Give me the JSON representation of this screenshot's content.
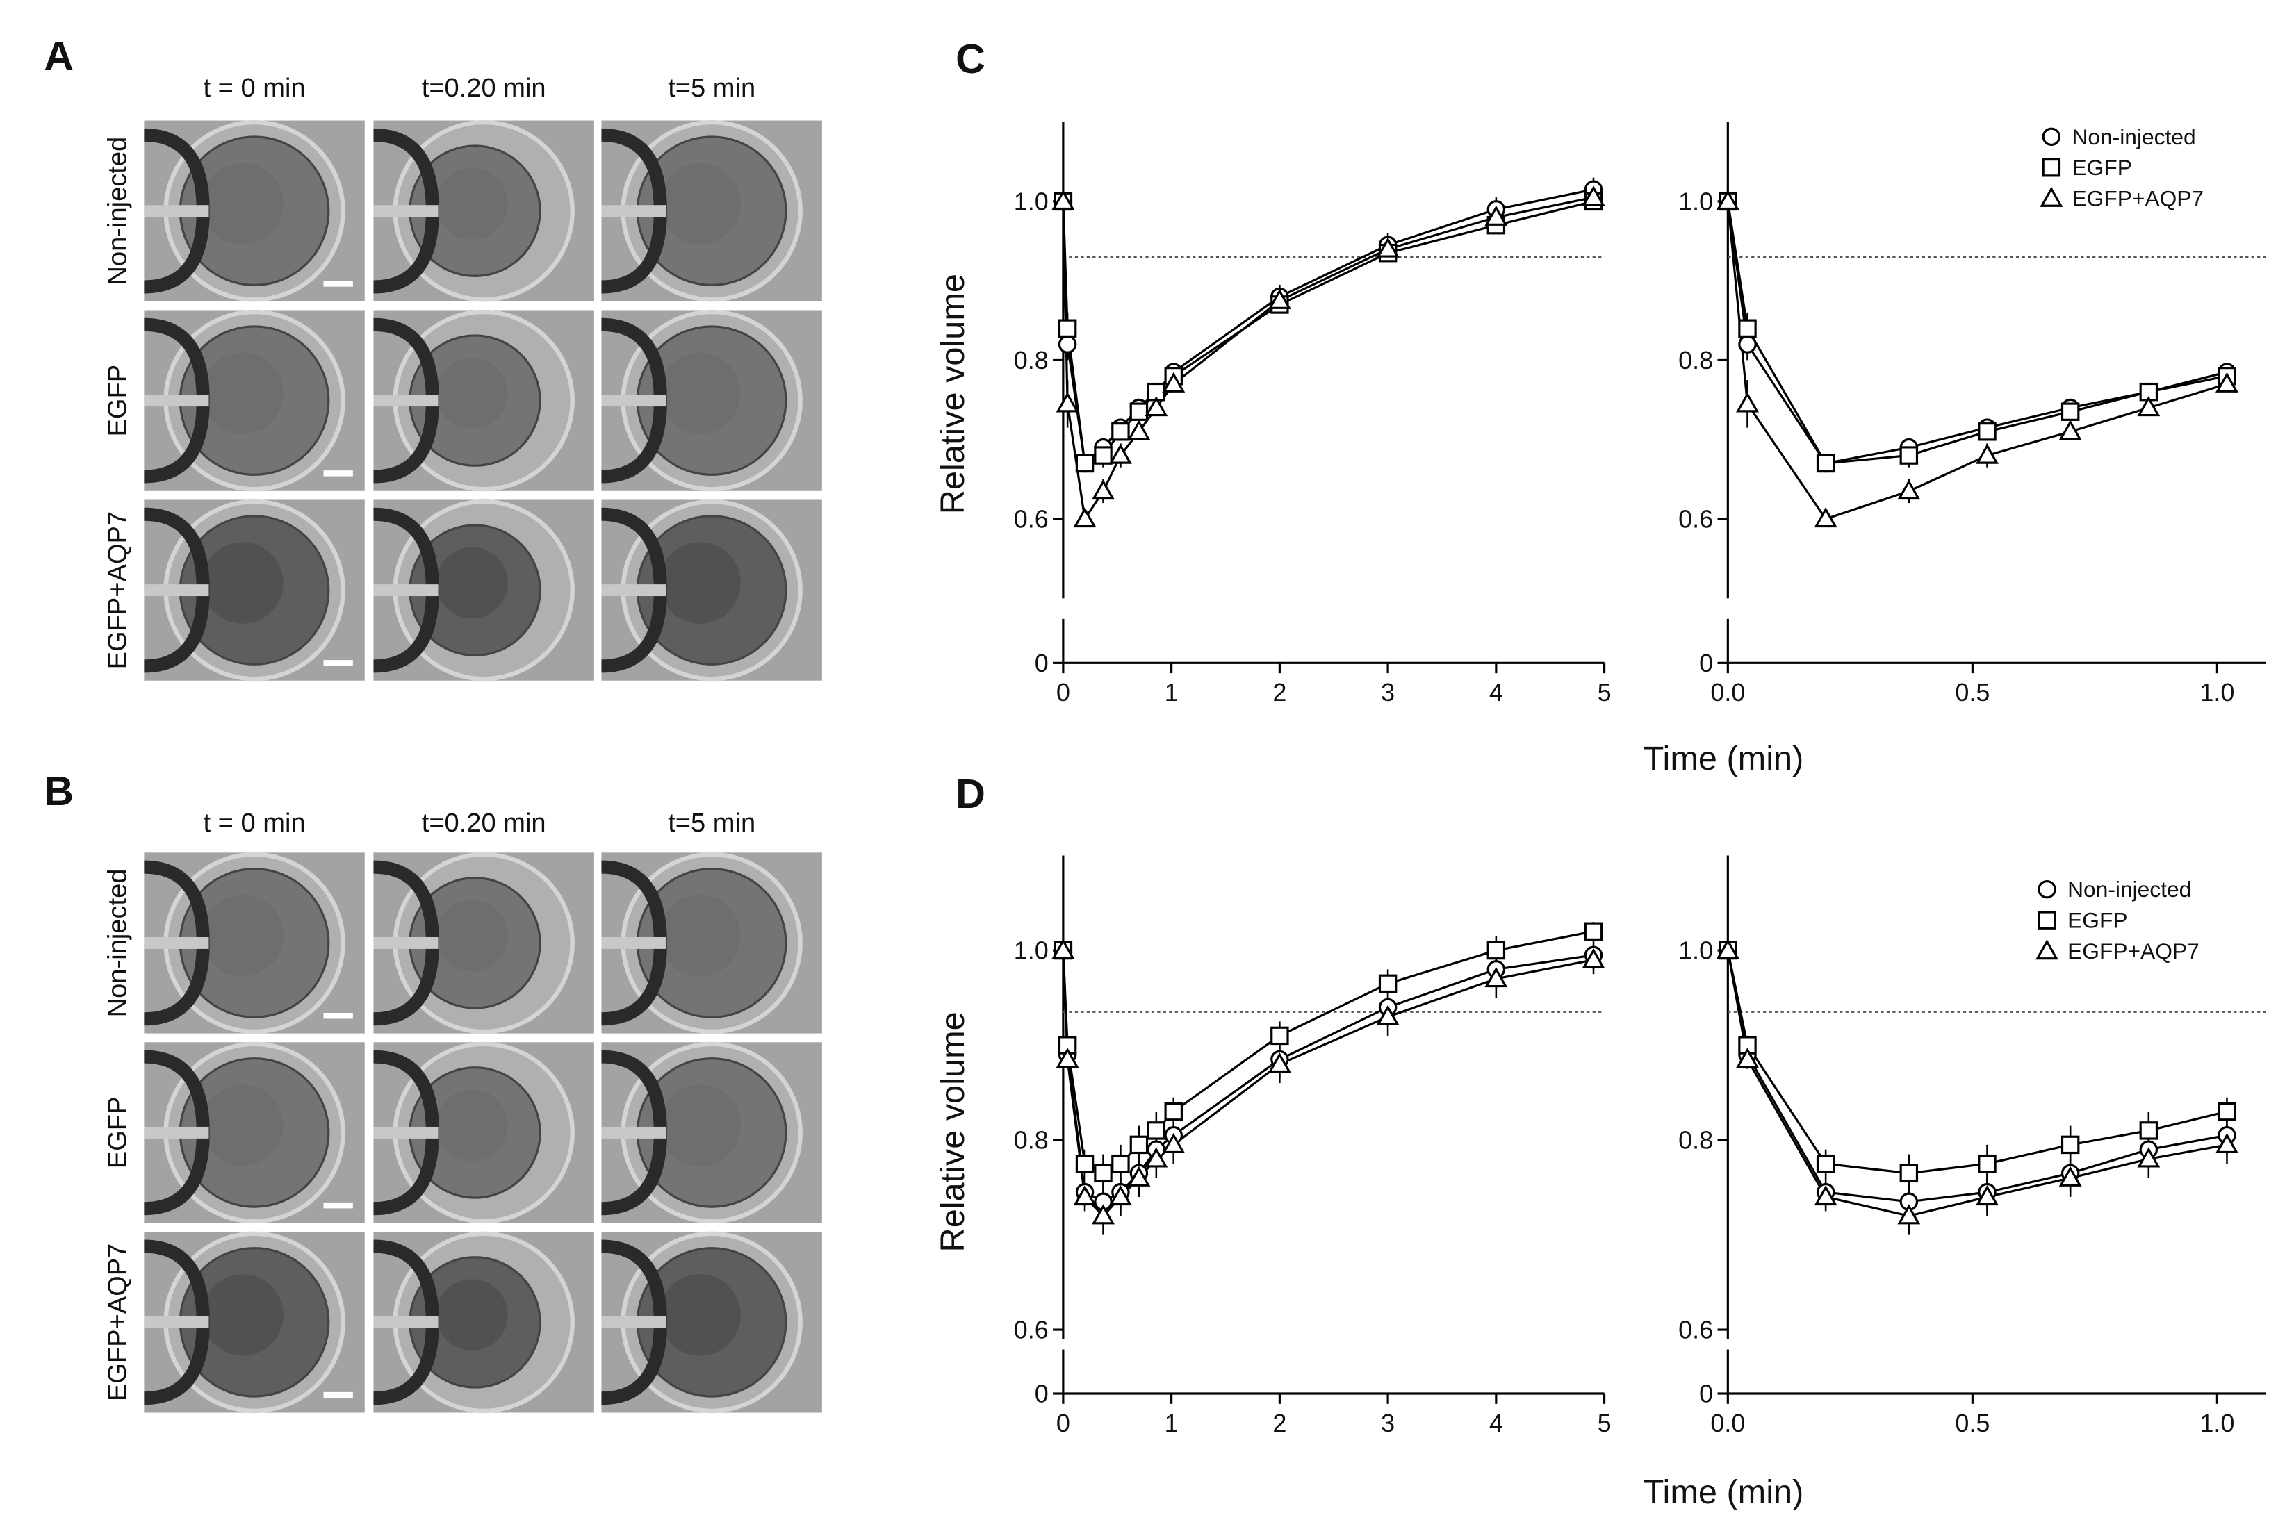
{
  "panels": [
    {
      "label": "A",
      "columns": [
        "t = 0 min",
        "t=0.20 min",
        "t=5 min"
      ],
      "rows": [
        "Non-injected",
        "EGFP",
        "EGFP+AQP7"
      ]
    },
    {
      "label": "B",
      "columns": [
        "t = 0 min",
        "t=0.20 min",
        "t=5 min"
      ],
      "rows": [
        "Non-injected",
        "EGFP",
        "EGFP+AQP7"
      ]
    }
  ],
  "chart_data": [
    {
      "type": "line",
      "panel_label": "C",
      "ylabel": "Relative volume",
      "xlabel": "Time (min)",
      "x": [
        0,
        0.04,
        0.2,
        0.37,
        0.53,
        0.7,
        0.86,
        1.02,
        2,
        3,
        4,
        4.9
      ],
      "xlim": [
        0,
        5
      ],
      "xticks": [
        0,
        1,
        2,
        3,
        4,
        5
      ],
      "ylim": [
        0,
        1.1
      ],
      "ybreak": [
        0.05,
        0.5
      ],
      "yticks": [
        0,
        0.6,
        0.8,
        {
          "value": 1,
          "label": "1.0"
        }
      ],
      "reference_line": 0.93,
      "series": [
        {
          "color": "#000000",
          "marker": "circle",
          "values": [
            1.0,
            0.82,
            0.67,
            0.69,
            0.715,
            0.74,
            0.76,
            0.785,
            0.88,
            0.945,
            0.99,
            1.015
          ],
          "errors": [
            0,
            0.02,
            0.01,
            0.01,
            0.01,
            0.01,
            0.01,
            0.01,
            0.015,
            0.015,
            0.015,
            0.015
          ]
        },
        {
          "color": "#000000",
          "marker": "square",
          "values": [
            1.0,
            0.84,
            0.67,
            0.68,
            0.71,
            0.735,
            0.76,
            0.78,
            0.87,
            0.935,
            0.97,
            1.0
          ],
          "errors": [
            0,
            0.02,
            0.01,
            0.015,
            0.01,
            0.01,
            0.01,
            0.01,
            0.01,
            0.01,
            0.01,
            0.01
          ]
        },
        {
          "color": "#000000",
          "marker": "triangle",
          "values": [
            1.0,
            0.745,
            0.6,
            0.635,
            0.68,
            0.71,
            0.74,
            0.77,
            0.875,
            0.94,
            0.98,
            1.005
          ],
          "errors": [
            0,
            0.03,
            0.01,
            0.015,
            0.015,
            0.01,
            0.01,
            0.01,
            0.01,
            0.01,
            0.01,
            0.01
          ]
        }
      ]
    },
    {
      "type": "line",
      "x": [
        0,
        0.04,
        0.2,
        0.37,
        0.53,
        0.7,
        0.86,
        1.02
      ],
      "xlim": [
        0,
        1.1
      ],
      "xticks": [
        {
          "value": 0,
          "label": "0.0"
        },
        0.5,
        {
          "value": 1,
          "label": "1.0"
        }
      ],
      "ylim": [
        0,
        1.1
      ],
      "ybreak": [
        0.05,
        0.5
      ],
      "yticks": [
        0,
        0.6,
        0.8,
        {
          "value": 1,
          "label": "1.0"
        }
      ],
      "reference_line": 0.93,
      "legend": "upper right",
      "series": [
        {
          "name": "Non-injected",
          "color": "#000000",
          "marker": "circle",
          "values": [
            1.0,
            0.82,
            0.67,
            0.69,
            0.715,
            0.74,
            0.76,
            0.785
          ],
          "errors": [
            0,
            0.02,
            0.01,
            0.01,
            0.01,
            0.01,
            0.01,
            0.01
          ]
        },
        {
          "name": "EGFP",
          "color": "#000000",
          "marker": "square",
          "values": [
            1.0,
            0.84,
            0.67,
            0.68,
            0.71,
            0.735,
            0.76,
            0.78
          ],
          "errors": [
            0,
            0.02,
            0.01,
            0.015,
            0.01,
            0.01,
            0.01,
            0.01
          ]
        },
        {
          "name": "EGFP+AQP7",
          "color": "#000000",
          "marker": "triangle",
          "values": [
            1.0,
            0.745,
            0.6,
            0.635,
            0.68,
            0.71,
            0.74,
            0.77
          ],
          "errors": [
            0,
            0.03,
            0.01,
            0.015,
            0.015,
            0.01,
            0.01,
            0.01
          ]
        }
      ]
    },
    {
      "type": "line",
      "panel_label": "D",
      "ylabel": "Relative volume",
      "xlabel": "Time (min)",
      "x": [
        0,
        0.04,
        0.2,
        0.37,
        0.53,
        0.7,
        0.86,
        1.02,
        2,
        3,
        4,
        4.9
      ],
      "xlim": [
        0,
        5
      ],
      "xticks": [
        0,
        1,
        2,
        3,
        4,
        5
      ],
      "ylim": [
        0,
        1.1
      ],
      "ybreak": [
        0.03,
        0.59
      ],
      "yticks": [
        0,
        0.6,
        0.8,
        {
          "value": 1,
          "label": "1.0"
        }
      ],
      "reference_line": 0.935,
      "series": [
        {
          "color": "#000000",
          "marker": "circle",
          "values": [
            1.0,
            0.89,
            0.745,
            0.735,
            0.745,
            0.765,
            0.79,
            0.805,
            0.885,
            0.94,
            0.98,
            0.995
          ],
          "errors": [
            0,
            0.01,
            0.015,
            0.02,
            0.02,
            0.02,
            0.02,
            0.02,
            0.02,
            0.02,
            0.02,
            0.015
          ]
        },
        {
          "color": "#000000",
          "marker": "square",
          "values": [
            1.0,
            0.9,
            0.775,
            0.765,
            0.775,
            0.795,
            0.81,
            0.83,
            0.91,
            0.965,
            1.0,
            1.02
          ],
          "errors": [
            0,
            0.01,
            0.015,
            0.02,
            0.02,
            0.02,
            0.02,
            0.015,
            0.015,
            0.015,
            0.015,
            0.01
          ]
        },
        {
          "color": "#000000",
          "marker": "triangle",
          "values": [
            1.0,
            0.885,
            0.74,
            0.72,
            0.74,
            0.76,
            0.78,
            0.795,
            0.88,
            0.93,
            0.97,
            0.99
          ],
          "errors": [
            0,
            0.01,
            0.015,
            0.02,
            0.02,
            0.02,
            0.02,
            0.02,
            0.02,
            0.02,
            0.02,
            0.015
          ]
        }
      ]
    },
    {
      "type": "line",
      "x": [
        0,
        0.04,
        0.2,
        0.37,
        0.53,
        0.7,
        0.86,
        1.02
      ],
      "xlim": [
        0,
        1.1
      ],
      "xticks": [
        {
          "value": 0,
          "label": "0.0"
        },
        0.5,
        {
          "value": 1,
          "label": "1.0"
        }
      ],
      "ylim": [
        0,
        1.1
      ],
      "ybreak": [
        0.03,
        0.59
      ],
      "yticks": [
        0,
        0.6,
        0.8,
        {
          "value": 1,
          "label": "1.0"
        }
      ],
      "reference_line": 0.935,
      "legend": "upper right",
      "series": [
        {
          "name": "Non-injected",
          "color": "#000000",
          "marker": "circle",
          "values": [
            1.0,
            0.89,
            0.745,
            0.735,
            0.745,
            0.765,
            0.79,
            0.805
          ],
          "errors": [
            0,
            0.01,
            0.015,
            0.02,
            0.02,
            0.02,
            0.02,
            0.02
          ]
        },
        {
          "name": "EGFP",
          "color": "#000000",
          "marker": "square",
          "values": [
            1.0,
            0.9,
            0.775,
            0.765,
            0.775,
            0.795,
            0.81,
            0.83
          ],
          "errors": [
            0,
            0.01,
            0.015,
            0.02,
            0.02,
            0.02,
            0.02,
            0.015
          ]
        },
        {
          "name": "EGFP+AQP7",
          "color": "#000000",
          "marker": "triangle",
          "values": [
            1.0,
            0.885,
            0.74,
            0.72,
            0.74,
            0.76,
            0.78,
            0.795
          ],
          "errors": [
            0,
            0.01,
            0.015,
            0.02,
            0.02,
            0.02,
            0.02,
            0.02
          ]
        }
      ]
    }
  ]
}
